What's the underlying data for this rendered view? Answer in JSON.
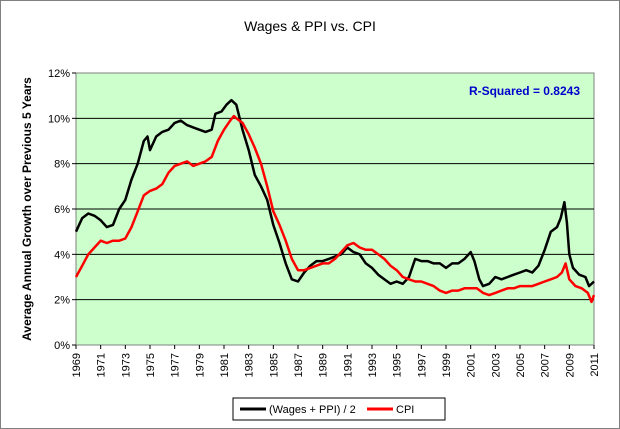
{
  "chart_data": {
    "type": "line",
    "title": "Wages & PPI vs. CPI",
    "ylabel": "Average Annual Growth over Previous 5 Years",
    "xlabel": "",
    "xlim": [
      1969,
      2011
    ],
    "ylim": [
      0,
      12
    ],
    "y_ticks": [
      "0%",
      "2%",
      "4%",
      "6%",
      "8%",
      "10%",
      "12%"
    ],
    "x_ticks": [
      "1969",
      "1971",
      "1973",
      "1975",
      "1977",
      "1979",
      "1981",
      "1983",
      "1985",
      "1987",
      "1989",
      "1991",
      "1993",
      "1995",
      "1997",
      "1999",
      "2001",
      "2003",
      "2005",
      "2007",
      "2009",
      "2011"
    ],
    "grid": "horizontal",
    "plot_background": "#ccffcc",
    "annotation": {
      "text": "R-Squared = 0.8243",
      "color": "#0000cc"
    },
    "legend_position": "bottom",
    "series": [
      {
        "name": "(Wages + PPI) / 2",
        "color": "#000000",
        "points": [
          [
            1969,
            5.0
          ],
          [
            1969.5,
            5.6
          ],
          [
            1970,
            5.8
          ],
          [
            1970.5,
            5.7
          ],
          [
            1971,
            5.5
          ],
          [
            1971.5,
            5.2
          ],
          [
            1972,
            5.3
          ],
          [
            1972.5,
            6.0
          ],
          [
            1973,
            6.4
          ],
          [
            1973.5,
            7.3
          ],
          [
            1974,
            8.0
          ],
          [
            1974.5,
            9.0
          ],
          [
            1974.8,
            9.2
          ],
          [
            1975,
            8.6
          ],
          [
            1975.5,
            9.2
          ],
          [
            1976,
            9.4
          ],
          [
            1976.5,
            9.5
          ],
          [
            1977,
            9.8
          ],
          [
            1977.5,
            9.9
          ],
          [
            1978,
            9.7
          ],
          [
            1978.5,
            9.6
          ],
          [
            1979,
            9.5
          ],
          [
            1979.5,
            9.4
          ],
          [
            1980,
            9.5
          ],
          [
            1980.3,
            10.2
          ],
          [
            1980.8,
            10.3
          ],
          [
            1981.2,
            10.6
          ],
          [
            1981.6,
            10.8
          ],
          [
            1982,
            10.6
          ],
          [
            1982.5,
            9.5
          ],
          [
            1983,
            8.6
          ],
          [
            1983.5,
            7.5
          ],
          [
            1984,
            7.0
          ],
          [
            1984.5,
            6.4
          ],
          [
            1985,
            5.3
          ],
          [
            1985.5,
            4.5
          ],
          [
            1986,
            3.6
          ],
          [
            1986.5,
            2.9
          ],
          [
            1987,
            2.8
          ],
          [
            1987.5,
            3.2
          ],
          [
            1988,
            3.5
          ],
          [
            1988.5,
            3.7
          ],
          [
            1989,
            3.7
          ],
          [
            1989.5,
            3.8
          ],
          [
            1990,
            3.9
          ],
          [
            1990.5,
            4.0
          ],
          [
            1991,
            4.3
          ],
          [
            1991.5,
            4.1
          ],
          [
            1992,
            4.0
          ],
          [
            1992.5,
            3.6
          ],
          [
            1993,
            3.4
          ],
          [
            1993.5,
            3.1
          ],
          [
            1994,
            2.9
          ],
          [
            1994.5,
            2.7
          ],
          [
            1995,
            2.8
          ],
          [
            1995.5,
            2.7
          ],
          [
            1996,
            3.0
          ],
          [
            1996.5,
            3.8
          ],
          [
            1997,
            3.7
          ],
          [
            1997.5,
            3.7
          ],
          [
            1998,
            3.6
          ],
          [
            1998.5,
            3.6
          ],
          [
            1999,
            3.4
          ],
          [
            1999.5,
            3.6
          ],
          [
            2000,
            3.6
          ],
          [
            2000.5,
            3.8
          ],
          [
            2001,
            4.1
          ],
          [
            2001.3,
            3.7
          ],
          [
            2001.7,
            2.9
          ],
          [
            2002,
            2.6
          ],
          [
            2002.5,
            2.7
          ],
          [
            2003,
            3.0
          ],
          [
            2003.5,
            2.9
          ],
          [
            2004,
            3.0
          ],
          [
            2004.5,
            3.1
          ],
          [
            2005,
            3.2
          ],
          [
            2005.5,
            3.3
          ],
          [
            2006,
            3.2
          ],
          [
            2006.5,
            3.5
          ],
          [
            2007,
            4.2
          ],
          [
            2007.5,
            5.0
          ],
          [
            2008,
            5.2
          ],
          [
            2008.3,
            5.6
          ],
          [
            2008.6,
            6.3
          ],
          [
            2008.8,
            5.4
          ],
          [
            2009,
            4.0
          ],
          [
            2009.3,
            3.4
          ],
          [
            2009.8,
            3.1
          ],
          [
            2010.3,
            3.0
          ],
          [
            2010.6,
            2.6
          ],
          [
            2011,
            2.8
          ]
        ]
      },
      {
        "name": "CPI",
        "color": "#ff0000",
        "points": [
          [
            1969,
            3.0
          ],
          [
            1969.5,
            3.5
          ],
          [
            1970,
            4.0
          ],
          [
            1970.5,
            4.3
          ],
          [
            1971,
            4.6
          ],
          [
            1971.5,
            4.5
          ],
          [
            1972,
            4.6
          ],
          [
            1972.5,
            4.6
          ],
          [
            1973,
            4.7
          ],
          [
            1973.5,
            5.2
          ],
          [
            1974,
            5.9
          ],
          [
            1974.5,
            6.6
          ],
          [
            1975,
            6.8
          ],
          [
            1975.5,
            6.9
          ],
          [
            1976,
            7.1
          ],
          [
            1976.5,
            7.6
          ],
          [
            1977,
            7.9
          ],
          [
            1977.5,
            8.0
          ],
          [
            1978,
            8.1
          ],
          [
            1978.5,
            7.9
          ],
          [
            1979,
            8.0
          ],
          [
            1979.5,
            8.1
          ],
          [
            1980,
            8.3
          ],
          [
            1980.5,
            9.0
          ],
          [
            1981,
            9.5
          ],
          [
            1981.5,
            9.9
          ],
          [
            1981.8,
            10.1
          ],
          [
            1982,
            10.0
          ],
          [
            1982.5,
            9.8
          ],
          [
            1983,
            9.3
          ],
          [
            1983.5,
            8.7
          ],
          [
            1984,
            8.0
          ],
          [
            1984.5,
            7.0
          ],
          [
            1985,
            5.9
          ],
          [
            1985.5,
            5.3
          ],
          [
            1986,
            4.6
          ],
          [
            1986.5,
            3.8
          ],
          [
            1987,
            3.3
          ],
          [
            1987.5,
            3.3
          ],
          [
            1988,
            3.4
          ],
          [
            1988.5,
            3.5
          ],
          [
            1989,
            3.6
          ],
          [
            1989.5,
            3.6
          ],
          [
            1990,
            3.8
          ],
          [
            1990.5,
            4.1
          ],
          [
            1991,
            4.4
          ],
          [
            1991.5,
            4.5
          ],
          [
            1992,
            4.3
          ],
          [
            1992.5,
            4.2
          ],
          [
            1993,
            4.2
          ],
          [
            1993.5,
            4.0
          ],
          [
            1994,
            3.8
          ],
          [
            1994.5,
            3.5
          ],
          [
            1995,
            3.3
          ],
          [
            1995.5,
            3.0
          ],
          [
            1996,
            2.9
          ],
          [
            1996.5,
            2.8
          ],
          [
            1997,
            2.8
          ],
          [
            1997.5,
            2.7
          ],
          [
            1998,
            2.6
          ],
          [
            1998.5,
            2.4
          ],
          [
            1999,
            2.3
          ],
          [
            1999.5,
            2.4
          ],
          [
            2000,
            2.4
          ],
          [
            2000.5,
            2.5
          ],
          [
            2001,
            2.5
          ],
          [
            2001.5,
            2.5
          ],
          [
            2002,
            2.3
          ],
          [
            2002.5,
            2.2
          ],
          [
            2003,
            2.3
          ],
          [
            2003.5,
            2.4
          ],
          [
            2004,
            2.5
          ],
          [
            2004.5,
            2.5
          ],
          [
            2005,
            2.6
          ],
          [
            2005.5,
            2.6
          ],
          [
            2006,
            2.6
          ],
          [
            2006.5,
            2.7
          ],
          [
            2007,
            2.8
          ],
          [
            2007.5,
            2.9
          ],
          [
            2008,
            3.0
          ],
          [
            2008.4,
            3.2
          ],
          [
            2008.7,
            3.6
          ],
          [
            2009,
            2.9
          ],
          [
            2009.5,
            2.6
          ],
          [
            2010,
            2.5
          ],
          [
            2010.5,
            2.3
          ],
          [
            2010.8,
            1.9
          ],
          [
            2011,
            2.2
          ]
        ]
      }
    ]
  }
}
